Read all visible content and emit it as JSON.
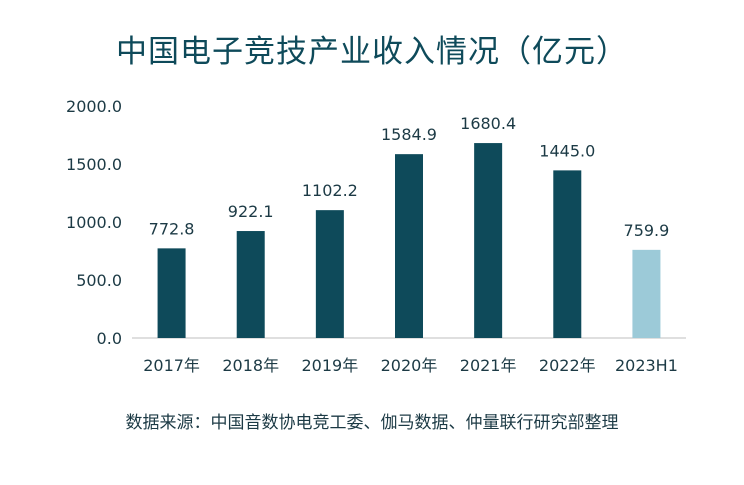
{
  "chart_data": {
    "type": "bar",
    "title": "中国电子竞技产业收入情况（亿元）",
    "categories": [
      "2017年",
      "2018年",
      "2019年",
      "2020年",
      "2021年",
      "2022年",
      "2023H1"
    ],
    "values": [
      772.8,
      922.1,
      1102.2,
      1584.9,
      1680.4,
      1445.0,
      759.9
    ],
    "value_labels": [
      "772.8",
      "922.1",
      "1102.2",
      "1584.9",
      "1680.4",
      "1445.0",
      "759.9"
    ],
    "ylim": [
      0,
      2000
    ],
    "yticks": [
      0,
      500,
      1000,
      1500,
      2000
    ],
    "ytick_labels": [
      "0.0",
      "500.0",
      "1000.0",
      "1500.0",
      "2000.0"
    ],
    "grid": false,
    "colors": {
      "primary": "#0e4a5a",
      "highlight": "#9ccad8",
      "axis": "#bfbfbf",
      "text": "#1c3a45"
    },
    "highlight_index": 6
  },
  "source_text": "数据来源：中国音数协电竞工委、伽马数据、仲量联行研究部整理"
}
